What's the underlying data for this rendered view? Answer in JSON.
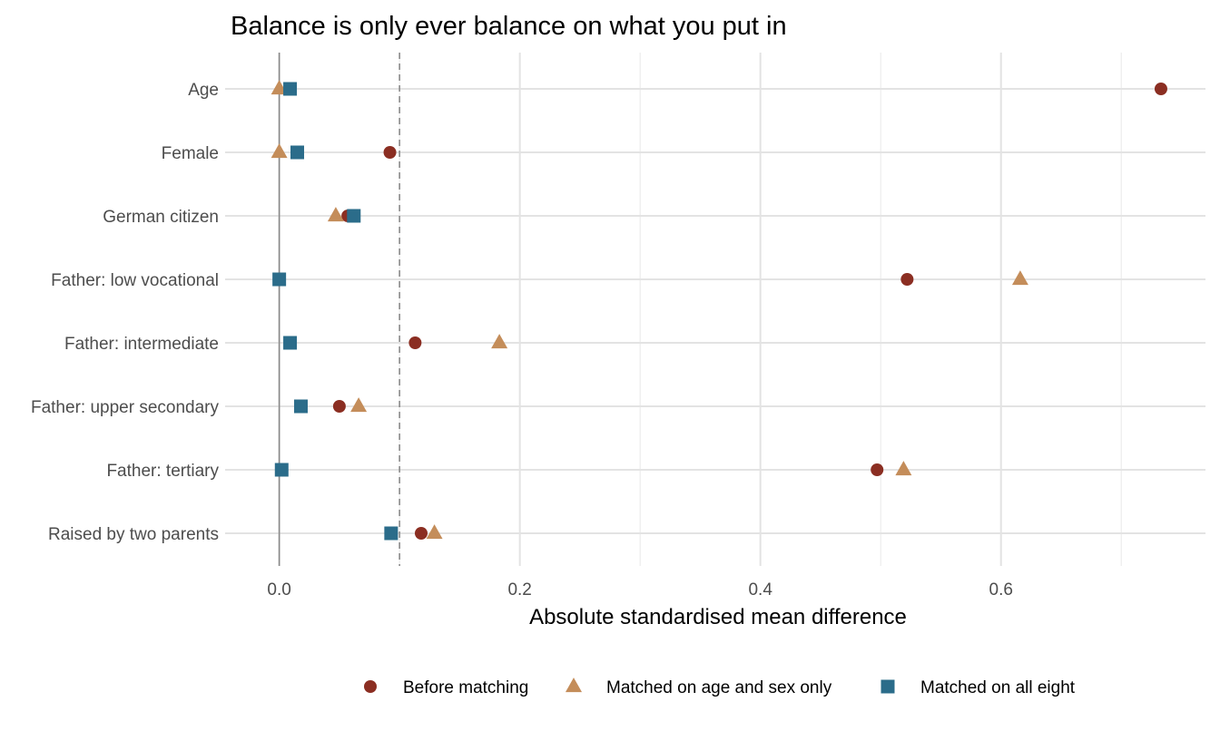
{
  "chart_data": {
    "type": "scatter",
    "title": "Balance is only ever balance on what you put in",
    "xlabel": "Absolute standardised mean difference",
    "ylabel": "",
    "xlim": [
      -0.045,
      0.77
    ],
    "x_ticks": [
      0.0,
      0.2,
      0.4,
      0.6
    ],
    "x_tick_labels": [
      "0.0",
      "0.2",
      "0.4",
      "0.6"
    ],
    "reference_line": 0.1,
    "zero_line": 0.0,
    "grid": true,
    "legend_position": "bottom",
    "categories": [
      "Age",
      "Female",
      "German citizen",
      "Father: low vocational",
      "Father: intermediate",
      "Father: upper secondary",
      "Father: tertiary",
      "Raised by two parents"
    ],
    "series": [
      {
        "name": "Before matching",
        "shape": "circle",
        "color": "#8b2e22",
        "values": [
          0.733,
          0.092,
          0.057,
          0.522,
          0.113,
          0.05,
          0.497,
          0.118
        ]
      },
      {
        "name": "Matched on age and sex only",
        "shape": "triangle",
        "color": "#c48d5a",
        "values": [
          0.0,
          0.0,
          0.047,
          0.616,
          0.183,
          0.066,
          0.519,
          0.129
        ]
      },
      {
        "name": "Matched on all eight",
        "shape": "square",
        "color": "#2b6c8a",
        "values": [
          0.009,
          0.015,
          0.062,
          0.0,
          0.009,
          0.018,
          0.002,
          0.093
        ]
      }
    ]
  }
}
